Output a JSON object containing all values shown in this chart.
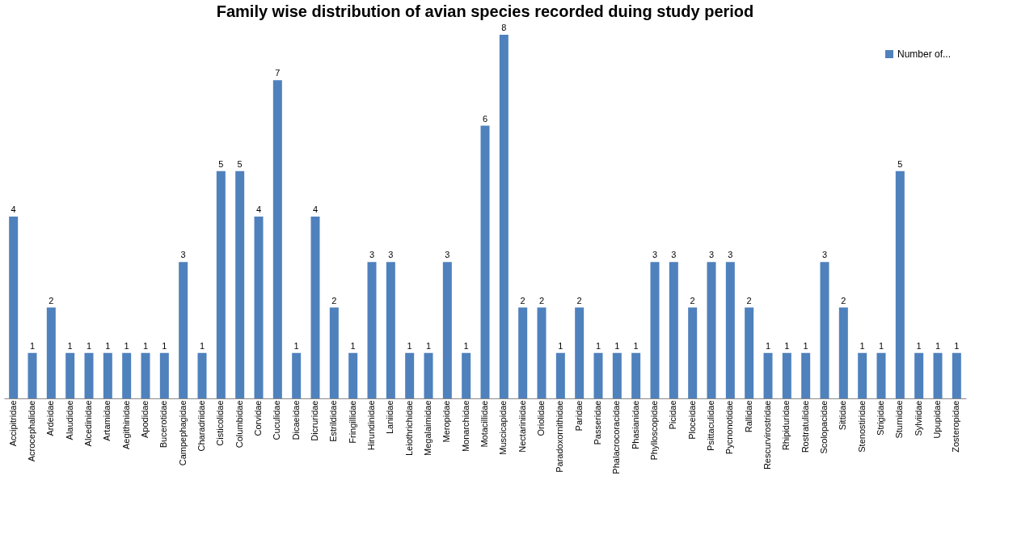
{
  "chart_data": {
    "type": "bar",
    "title": "Family wise distribution of avian species recorded duing study period",
    "categories": [
      "Accipitridae",
      "Acrocephalidae",
      "Ardeidae",
      "Alaudidae",
      "Alcedinidae",
      "Artamidae",
      "Aegithinidae",
      "Apodidae",
      "Bucerotidae",
      "Campephagidae",
      "Charadriidae",
      "Cisticolidae",
      "Columbidae",
      "Corvidae",
      "Cuculidae",
      "Dicaeidae",
      "Dicruridae",
      "Estrildidae",
      "Fringillidae",
      "Hirundinidae",
      "Laniidae",
      "Leiothrichidae",
      "Megalaimidae",
      "Meropidae",
      "Monarchidae",
      "Motacillidae",
      "Muscicapidae",
      "Nectariniidae",
      "Oriolidae",
      "Paradoxornithidae",
      "Paridae",
      "Passeridae",
      "Phalacrocoracidae",
      "Phasianidae",
      "Phylloscopidae",
      "Picidae",
      "Ploceidae",
      "Psittaculidae",
      "Pycnonotidae",
      "Rallidae",
      "Rescurvirostridae",
      "Rhipiduridae",
      "Rostratulidae",
      "Scolopacidae",
      "Sittidae",
      "Stenostiridae",
      "Strigidae",
      "Sturnidae",
      "Sylviidae",
      "Upupidae",
      "Zosteropidae"
    ],
    "series": [
      {
        "name": "Number of...",
        "color": "#4f81bd",
        "values": [
          4,
          1,
          2,
          1,
          1,
          1,
          1,
          1,
          1,
          3,
          1,
          5,
          5,
          4,
          7,
          1,
          4,
          2,
          1,
          3,
          3,
          1,
          1,
          3,
          1,
          6,
          8,
          2,
          2,
          1,
          2,
          1,
          1,
          1,
          3,
          3,
          2,
          3,
          3,
          2,
          1,
          1,
          1,
          3,
          2,
          1,
          1,
          5,
          1,
          1,
          1
        ]
      }
    ],
    "data_labels": true,
    "legend": "top right",
    "grid": false
  }
}
